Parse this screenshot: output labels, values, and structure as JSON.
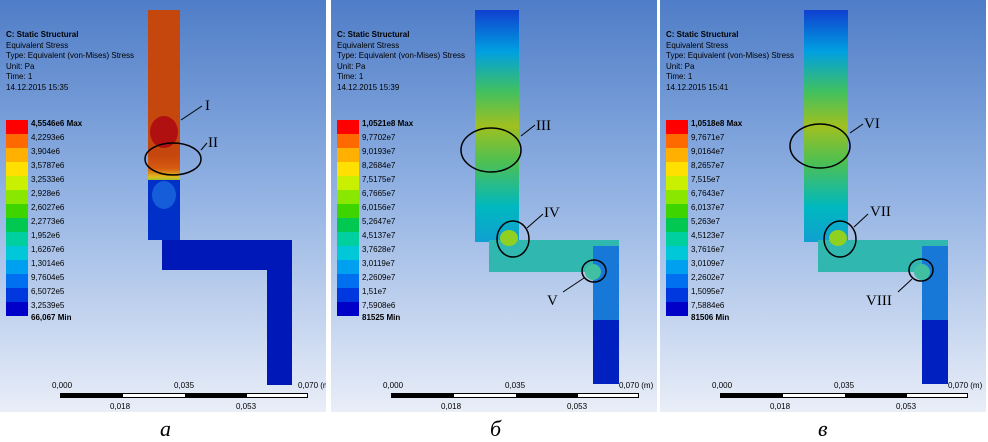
{
  "panels": [
    {
      "id": "a",
      "header": {
        "title": "C: Static Structural",
        "result": "Equivalent Stress",
        "type": "Type: Equivalent (von-Mises) Stress",
        "unit": "Unit: Pa",
        "time": "Time: 1",
        "date": "14.12.2015 15:35"
      },
      "legend": [
        "4,5546e6 Max",
        "4,2293e6",
        "3,904e6",
        "3,5787e6",
        "3,2533e6",
        "2,928e6",
        "2,6027e6",
        "2,2773e6",
        "1,952e6",
        "1,6267e6",
        "1,3014e6",
        "9,7604e5",
        "6,5072e5",
        "3,2539e5",
        "66,067 Min"
      ],
      "callouts": [
        "I",
        "II"
      ],
      "scale": {
        "start": "0,000",
        "mid": "0,035",
        "end": "0,070 (m)",
        "q1": "0,018",
        "q3": "0,053"
      },
      "caption": "а"
    },
    {
      "id": "b",
      "header": {
        "title": "C: Static Structural",
        "result": "Equivalent Stress",
        "type": "Type: Equivalent (von-Mises) Stress",
        "unit": "Unit: Pa",
        "time": "Time: 1",
        "date": "14.12.2015 15:39"
      },
      "legend": [
        "1,0521e8 Max",
        "9,7702e7",
        "9,0193e7",
        "8,2684e7",
        "7,5175e7",
        "6,7665e7",
        "6,0156e7",
        "5,2647e7",
        "4,5137e7",
        "3,7628e7",
        "3,0119e7",
        "2,2609e7",
        "1,51e7",
        "7,5908e6",
        "81525 Min"
      ],
      "callouts": [
        "III",
        "IV",
        "V"
      ],
      "scale": {
        "start": "0,000",
        "mid": "0,035",
        "end": "0,070 (m)",
        "q1": "0,018",
        "q3": "0,053"
      },
      "caption": "б"
    },
    {
      "id": "c",
      "header": {
        "title": "C: Static Structural",
        "result": "Equivalent Stress",
        "type": "Type: Equivalent (von-Mises) Stress",
        "unit": "Unit: Pa",
        "time": "Time: 1",
        "date": "14.12.2015 15:41"
      },
      "legend": [
        "1,0518e8 Max",
        "9,7671e7",
        "9,0164e7",
        "8,2657e7",
        "7,515e7",
        "6,7643e7",
        "6,0137e7",
        "5,263e7",
        "4,5123e7",
        "3,7616e7",
        "3,0109e7",
        "2,2602e7",
        "1,5095e7",
        "7,5884e6",
        "81506 Min"
      ],
      "callouts": [
        "VI",
        "VII",
        "VIII"
      ],
      "scale": {
        "start": "0,000",
        "mid": "0,035",
        "end": "0,070 (m)",
        "q1": "0,018",
        "q3": "0,053"
      },
      "caption": "в"
    }
  ],
  "legend_colors": [
    "#ff0000",
    "#ff6a00",
    "#ffb000",
    "#ffe000",
    "#c8f000",
    "#8ae800",
    "#3ed400",
    "#00c850",
    "#00d0a0",
    "#00c8d8",
    "#00a0f0",
    "#0070f0",
    "#0038e0",
    "#0000c8"
  ]
}
